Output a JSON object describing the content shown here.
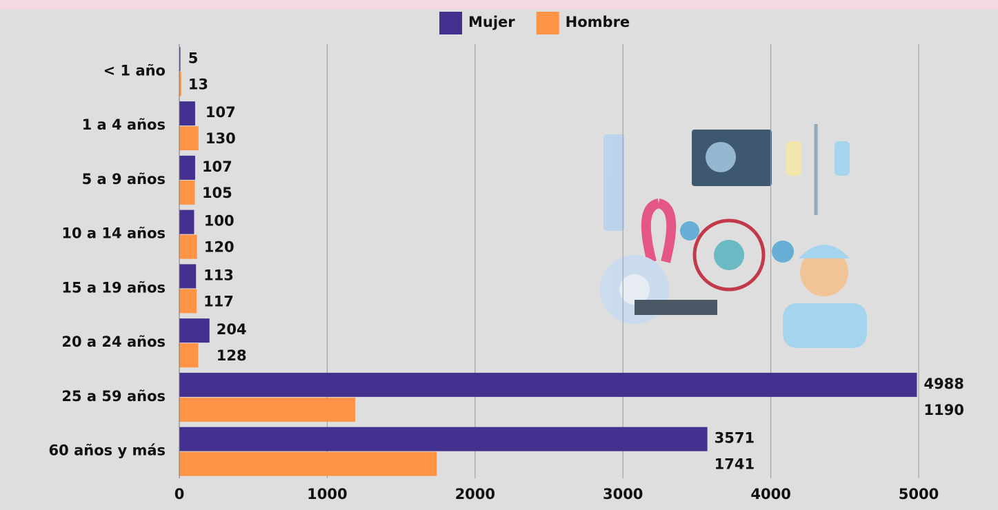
{
  "chart_data": {
    "type": "bar",
    "orientation": "horizontal",
    "categories": [
      "< 1 año",
      "1 a 4 años",
      "5 a 9 años",
      "10 a 14 años",
      "15 a 19 años",
      "20 a 24 años",
      "25 a 59 años",
      "60 años y más"
    ],
    "series": [
      {
        "name": "Mujer",
        "color": "#44308f",
        "values": [
          5,
          107,
          107,
          100,
          113,
          204,
          4988,
          3571
        ]
      },
      {
        "name": "Hombre",
        "color": "#ff9447",
        "values": [
          13,
          130,
          105,
          120,
          117,
          128,
          1190,
          1741
        ]
      }
    ],
    "xlim": [
      0,
      5000
    ],
    "xticks": [
      0,
      1000,
      2000,
      3000,
      4000,
      5000
    ],
    "grid": true,
    "legend": "top"
  }
}
